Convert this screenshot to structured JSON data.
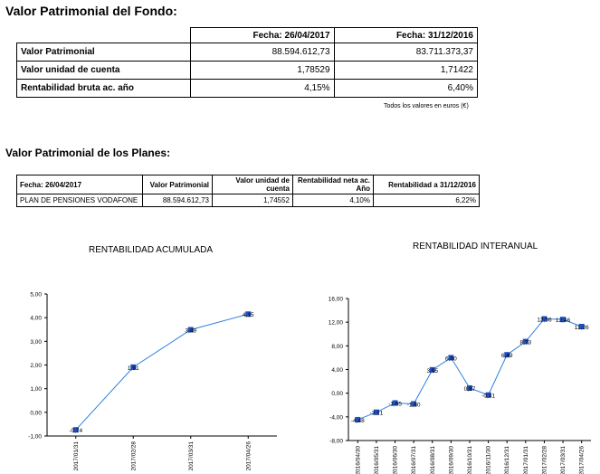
{
  "fund": {
    "title": "Valor Patrimonial del Fondo:",
    "col1": "Fecha: 26/04/2017",
    "col2": "Fecha: 31/12/2016",
    "rows": [
      {
        "label": "Valor Patrimonial",
        "v1": "88.594.612,73",
        "v2": "83.711.373,37"
      },
      {
        "label": "Valor unidad de cuenta",
        "v1": "1,78529",
        "v2": "1,71422"
      },
      {
        "label": "Rentabilidad bruta ac. año",
        "v1": "4,15%",
        "v2": "6,40%"
      }
    ],
    "note": "Todos los valores en euros (€)"
  },
  "plans": {
    "title": "Valor Patrimonial de los Planes:",
    "headers": [
      "Fecha: 26/04/2017",
      "Valor Patrimonial",
      "Valor unidad de cuenta",
      "Rentabilidad neta ac. Año",
      "Rentabilidad a 31/12/2016"
    ],
    "row": [
      "PLAN DE PENSIONES VODAFONE",
      "88.594.612,73",
      "1,74552",
      "4,10%",
      "6,22%"
    ]
  },
  "chart_data": [
    {
      "type": "line",
      "title": "RENTABILIDAD ACUMULADA",
      "categories": [
        "2017/01/31",
        "2017/02/28",
        "2017/03/31",
        "2017/04/26"
      ],
      "values": [
        -0.74,
        1.91,
        3.49,
        4.15
      ],
      "labels": [
        "-0,74",
        "1,91",
        "3,49",
        "4,15"
      ],
      "ylim": [
        -1,
        5
      ],
      "yticks": [
        "5,00",
        "4,00",
        "3,00",
        "2,00",
        "1,00",
        "0,00",
        "-1,00"
      ],
      "color": "#2f7fe0",
      "marker_color": "#1f4fc0"
    },
    {
      "type": "line",
      "title": "RENTABILIDAD INTERANUAL",
      "categories": [
        "2016/04/30",
        "2016/05/31",
        "2016/06/30",
        "2016/07/31",
        "2016/08/31",
        "2016/09/30",
        "2016/10/31",
        "2016/11/30",
        "2016/12/31",
        "2017/01/31",
        "2017/02/28",
        "2017/03/31",
        "2017/04/26"
      ],
      "values": [
        -4.48,
        -3.21,
        -1.65,
        -1.8,
        3.95,
        6.0,
        0.87,
        -0.31,
        6.49,
        8.73,
        12.56,
        12.46,
        11.26
      ],
      "labels": [
        "-4,48",
        "-3,21",
        "-1,65",
        "-1,80",
        "3,95",
        "6,00",
        "0,87",
        "-0,31",
        "6,49",
        "8,73",
        "12,56",
        "12,46",
        "11,26"
      ],
      "ylim": [
        -8,
        16
      ],
      "yticks": [
        "16,00",
        "12,00",
        "8,00",
        "4,00",
        "0,00",
        "-4,00",
        "-8,00"
      ],
      "color": "#2f7fe0",
      "marker_color": "#1f4fc0"
    }
  ]
}
